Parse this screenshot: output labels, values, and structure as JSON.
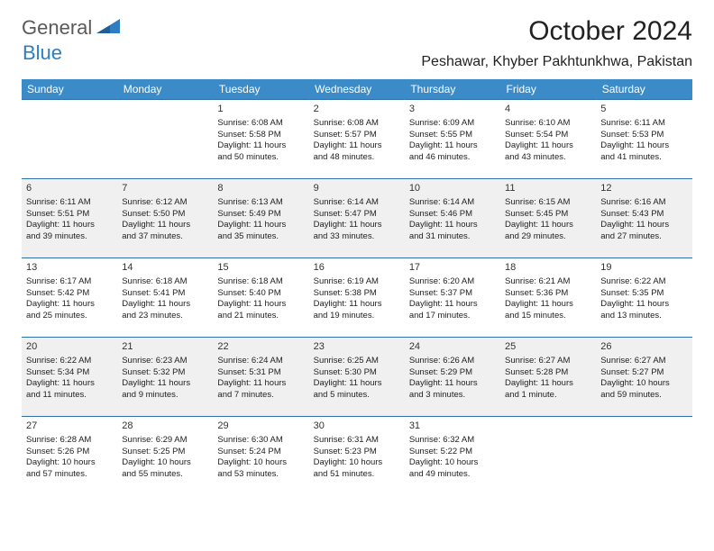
{
  "brand": {
    "part1": "General",
    "part2": "Blue"
  },
  "title": "October 2024",
  "location": "Peshawar, Khyber Pakhtunkhwa, Pakistan",
  "colors": {
    "header_bg": "#3b8bc9",
    "header_text": "#ffffff",
    "row_border": "#2f6ea8",
    "alt_row_bg": "#f0f0f0",
    "logo_gray": "#5a5a5a",
    "logo_blue": "#2f7ec2"
  },
  "typography": {
    "title_fontsize": 30,
    "location_fontsize": 16,
    "dayheader_fontsize": 12,
    "cell_fontsize": 9.5
  },
  "weekdays": [
    "Sunday",
    "Monday",
    "Tuesday",
    "Wednesday",
    "Thursday",
    "Friday",
    "Saturday"
  ],
  "weeks": [
    [
      null,
      null,
      {
        "n": "1",
        "sr": "Sunrise: 6:08 AM",
        "ss": "Sunset: 5:58 PM",
        "d1": "Daylight: 11 hours",
        "d2": "and 50 minutes."
      },
      {
        "n": "2",
        "sr": "Sunrise: 6:08 AM",
        "ss": "Sunset: 5:57 PM",
        "d1": "Daylight: 11 hours",
        "d2": "and 48 minutes."
      },
      {
        "n": "3",
        "sr": "Sunrise: 6:09 AM",
        "ss": "Sunset: 5:55 PM",
        "d1": "Daylight: 11 hours",
        "d2": "and 46 minutes."
      },
      {
        "n": "4",
        "sr": "Sunrise: 6:10 AM",
        "ss": "Sunset: 5:54 PM",
        "d1": "Daylight: 11 hours",
        "d2": "and 43 minutes."
      },
      {
        "n": "5",
        "sr": "Sunrise: 6:11 AM",
        "ss": "Sunset: 5:53 PM",
        "d1": "Daylight: 11 hours",
        "d2": "and 41 minutes."
      }
    ],
    [
      {
        "n": "6",
        "sr": "Sunrise: 6:11 AM",
        "ss": "Sunset: 5:51 PM",
        "d1": "Daylight: 11 hours",
        "d2": "and 39 minutes."
      },
      {
        "n": "7",
        "sr": "Sunrise: 6:12 AM",
        "ss": "Sunset: 5:50 PM",
        "d1": "Daylight: 11 hours",
        "d2": "and 37 minutes."
      },
      {
        "n": "8",
        "sr": "Sunrise: 6:13 AM",
        "ss": "Sunset: 5:49 PM",
        "d1": "Daylight: 11 hours",
        "d2": "and 35 minutes."
      },
      {
        "n": "9",
        "sr": "Sunrise: 6:14 AM",
        "ss": "Sunset: 5:47 PM",
        "d1": "Daylight: 11 hours",
        "d2": "and 33 minutes."
      },
      {
        "n": "10",
        "sr": "Sunrise: 6:14 AM",
        "ss": "Sunset: 5:46 PM",
        "d1": "Daylight: 11 hours",
        "d2": "and 31 minutes."
      },
      {
        "n": "11",
        "sr": "Sunrise: 6:15 AM",
        "ss": "Sunset: 5:45 PM",
        "d1": "Daylight: 11 hours",
        "d2": "and 29 minutes."
      },
      {
        "n": "12",
        "sr": "Sunrise: 6:16 AM",
        "ss": "Sunset: 5:43 PM",
        "d1": "Daylight: 11 hours",
        "d2": "and 27 minutes."
      }
    ],
    [
      {
        "n": "13",
        "sr": "Sunrise: 6:17 AM",
        "ss": "Sunset: 5:42 PM",
        "d1": "Daylight: 11 hours",
        "d2": "and 25 minutes."
      },
      {
        "n": "14",
        "sr": "Sunrise: 6:18 AM",
        "ss": "Sunset: 5:41 PM",
        "d1": "Daylight: 11 hours",
        "d2": "and 23 minutes."
      },
      {
        "n": "15",
        "sr": "Sunrise: 6:18 AM",
        "ss": "Sunset: 5:40 PM",
        "d1": "Daylight: 11 hours",
        "d2": "and 21 minutes."
      },
      {
        "n": "16",
        "sr": "Sunrise: 6:19 AM",
        "ss": "Sunset: 5:38 PM",
        "d1": "Daylight: 11 hours",
        "d2": "and 19 minutes."
      },
      {
        "n": "17",
        "sr": "Sunrise: 6:20 AM",
        "ss": "Sunset: 5:37 PM",
        "d1": "Daylight: 11 hours",
        "d2": "and 17 minutes."
      },
      {
        "n": "18",
        "sr": "Sunrise: 6:21 AM",
        "ss": "Sunset: 5:36 PM",
        "d1": "Daylight: 11 hours",
        "d2": "and 15 minutes."
      },
      {
        "n": "19",
        "sr": "Sunrise: 6:22 AM",
        "ss": "Sunset: 5:35 PM",
        "d1": "Daylight: 11 hours",
        "d2": "and 13 minutes."
      }
    ],
    [
      {
        "n": "20",
        "sr": "Sunrise: 6:22 AM",
        "ss": "Sunset: 5:34 PM",
        "d1": "Daylight: 11 hours",
        "d2": "and 11 minutes."
      },
      {
        "n": "21",
        "sr": "Sunrise: 6:23 AM",
        "ss": "Sunset: 5:32 PM",
        "d1": "Daylight: 11 hours",
        "d2": "and 9 minutes."
      },
      {
        "n": "22",
        "sr": "Sunrise: 6:24 AM",
        "ss": "Sunset: 5:31 PM",
        "d1": "Daylight: 11 hours",
        "d2": "and 7 minutes."
      },
      {
        "n": "23",
        "sr": "Sunrise: 6:25 AM",
        "ss": "Sunset: 5:30 PM",
        "d1": "Daylight: 11 hours",
        "d2": "and 5 minutes."
      },
      {
        "n": "24",
        "sr": "Sunrise: 6:26 AM",
        "ss": "Sunset: 5:29 PM",
        "d1": "Daylight: 11 hours",
        "d2": "and 3 minutes."
      },
      {
        "n": "25",
        "sr": "Sunrise: 6:27 AM",
        "ss": "Sunset: 5:28 PM",
        "d1": "Daylight: 11 hours",
        "d2": "and 1 minute."
      },
      {
        "n": "26",
        "sr": "Sunrise: 6:27 AM",
        "ss": "Sunset: 5:27 PM",
        "d1": "Daylight: 10 hours",
        "d2": "and 59 minutes."
      }
    ],
    [
      {
        "n": "27",
        "sr": "Sunrise: 6:28 AM",
        "ss": "Sunset: 5:26 PM",
        "d1": "Daylight: 10 hours",
        "d2": "and 57 minutes."
      },
      {
        "n": "28",
        "sr": "Sunrise: 6:29 AM",
        "ss": "Sunset: 5:25 PM",
        "d1": "Daylight: 10 hours",
        "d2": "and 55 minutes."
      },
      {
        "n": "29",
        "sr": "Sunrise: 6:30 AM",
        "ss": "Sunset: 5:24 PM",
        "d1": "Daylight: 10 hours",
        "d2": "and 53 minutes."
      },
      {
        "n": "30",
        "sr": "Sunrise: 6:31 AM",
        "ss": "Sunset: 5:23 PM",
        "d1": "Daylight: 10 hours",
        "d2": "and 51 minutes."
      },
      {
        "n": "31",
        "sr": "Sunrise: 6:32 AM",
        "ss": "Sunset: 5:22 PM",
        "d1": "Daylight: 10 hours",
        "d2": "and 49 minutes."
      },
      null,
      null
    ]
  ]
}
